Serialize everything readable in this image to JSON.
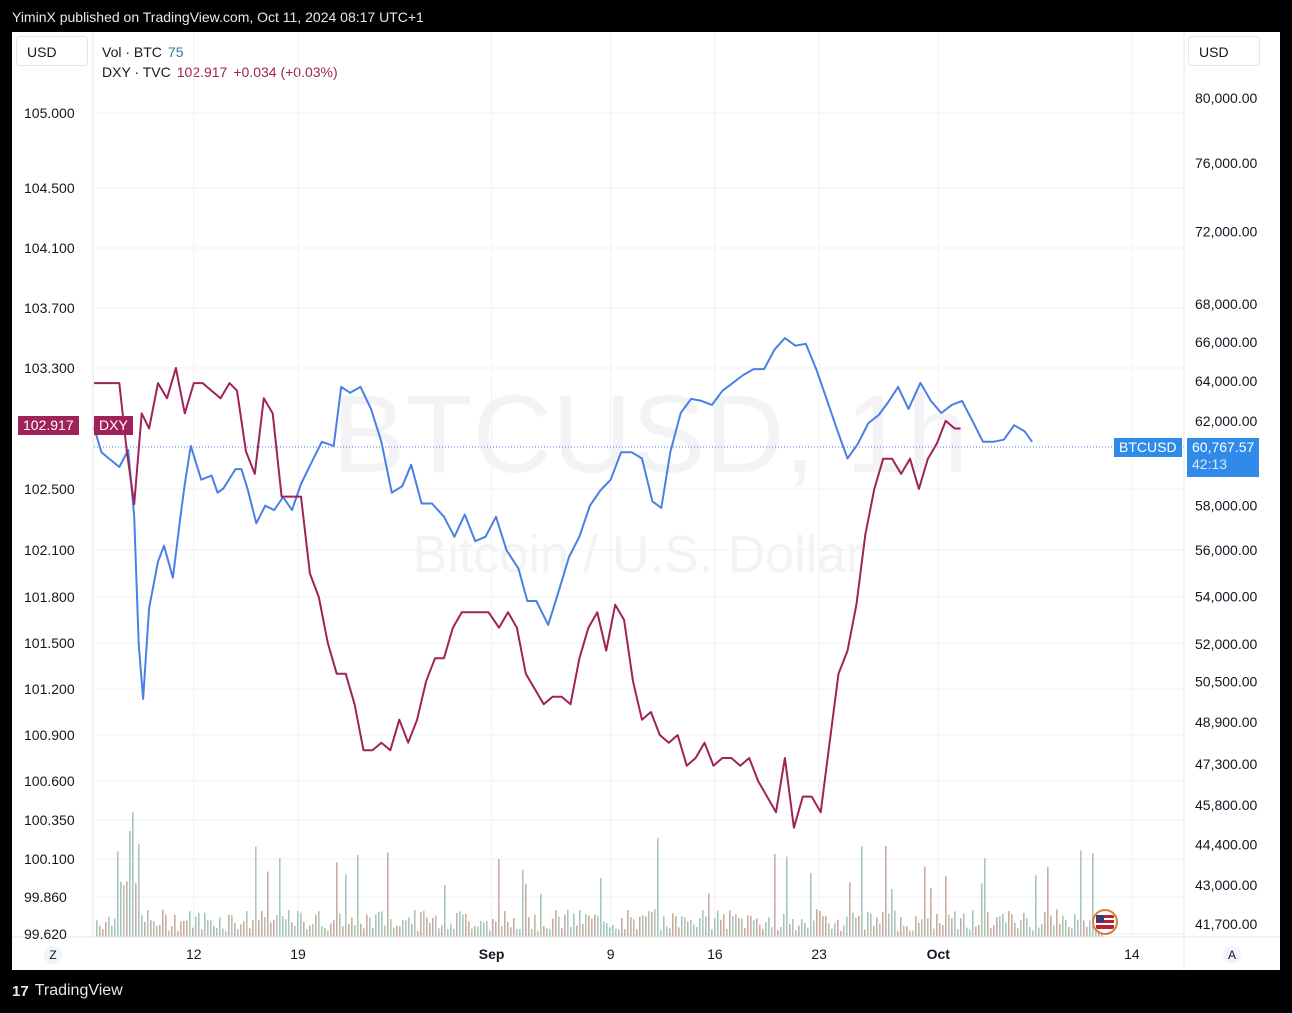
{
  "header": {
    "published": "YiminX published on TradingView.com, Oct 11, 2024 08:17 UTC+1"
  },
  "currency": {
    "left": "USD",
    "right": "USD"
  },
  "legend": {
    "vol_label": "Vol · BTC",
    "vol_value": "75",
    "dxy_label": "DXY · TVC",
    "dxy_value": "102.917",
    "dxy_change": "+0.034 (+0.03%)"
  },
  "watermark": {
    "symbol": "BTCUSD, 1h",
    "name": "Bitcoin / U.S. Dollar"
  },
  "tags": {
    "dxy_price": "102.917",
    "dxy_name": "DXY",
    "btc_name": "BTCUSD",
    "btc_price": "60,767.57",
    "btc_countdown": "42:13"
  },
  "corners": {
    "left": "Z",
    "right": "A"
  },
  "footer": {
    "brand": "TradingView"
  },
  "colors": {
    "btc": "#4a7fe6",
    "dxy": "#a0225a",
    "volume": "#c8ad9e",
    "grid": "#f0f1f4"
  },
  "chart_data": {
    "type": "line",
    "left_axis_ticks": [
      "105.000",
      "104.500",
      "104.100",
      "103.700",
      "103.300",
      "102.500",
      "102.100",
      "101.800",
      "101.500",
      "101.200",
      "100.900",
      "100.600",
      "100.350",
      "100.100",
      "99.860",
      "99.620"
    ],
    "right_axis_ticks": [
      "80,000.00",
      "76,000.00",
      "72,000.00",
      "68,000.00",
      "66,000.00",
      "64,000.00",
      "62,000.00",
      "58,000.00",
      "56,000.00",
      "54,000.00",
      "52,000.00",
      "50,500.00",
      "48,900.00",
      "47,300.00",
      "45,800.00",
      "44,400.00",
      "43,000.00",
      "41,700.00"
    ],
    "x_ticks": [
      {
        "label": "12",
        "day": 12
      },
      {
        "label": "19",
        "day": 19
      },
      {
        "label": "Sep",
        "day": 32,
        "bold": true
      },
      {
        "label": "9",
        "day": 40
      },
      {
        "label": "16",
        "day": 47
      },
      {
        "label": "23",
        "day": 54
      },
      {
        "label": "Oct",
        "day": 62,
        "bold": true
      },
      {
        "label": "14",
        "day": 75
      }
    ],
    "x_domain": [
      5.3,
      78.5
    ],
    "series": [
      {
        "name": "BTCUSD",
        "axis": "right",
        "points": [
          [
            5.3,
            61700
          ],
          [
            5.8,
            60500
          ],
          [
            6.3,
            60200
          ],
          [
            7.0,
            59800
          ],
          [
            7.6,
            60600
          ],
          [
            8.0,
            57500
          ],
          [
            8.3,
            52000
          ],
          [
            8.6,
            49800
          ],
          [
            9.0,
            53500
          ],
          [
            9.6,
            55500
          ],
          [
            10.0,
            56200
          ],
          [
            10.6,
            54800
          ],
          [
            11.1,
            57500
          ],
          [
            11.4,
            59000
          ],
          [
            11.8,
            60800
          ],
          [
            12.5,
            59200
          ],
          [
            13.2,
            59400
          ],
          [
            13.6,
            58600
          ],
          [
            14.0,
            58800
          ],
          [
            14.8,
            59700
          ],
          [
            15.2,
            59700
          ],
          [
            15.6,
            58800
          ],
          [
            16.2,
            57200
          ],
          [
            16.8,
            58000
          ],
          [
            17.4,
            57800
          ],
          [
            18.0,
            58400
          ],
          [
            18.6,
            57800
          ],
          [
            19.2,
            59000
          ],
          [
            19.9,
            60000
          ],
          [
            20.6,
            61000
          ],
          [
            21.4,
            60800
          ],
          [
            21.9,
            63700
          ],
          [
            22.5,
            63400
          ],
          [
            23.2,
            63700
          ],
          [
            23.9,
            62600
          ],
          [
            24.6,
            61000
          ],
          [
            25.3,
            58600
          ],
          [
            26.0,
            58900
          ],
          [
            26.6,
            59900
          ],
          [
            27.3,
            58100
          ],
          [
            28.0,
            58100
          ],
          [
            28.8,
            57500
          ],
          [
            29.5,
            56600
          ],
          [
            30.2,
            57600
          ],
          [
            30.9,
            56400
          ],
          [
            31.6,
            56600
          ],
          [
            32.3,
            57500
          ],
          [
            33.0,
            56000
          ],
          [
            33.8,
            55200
          ],
          [
            34.4,
            53800
          ],
          [
            35.0,
            53800
          ],
          [
            35.8,
            52800
          ],
          [
            36.5,
            54200
          ],
          [
            37.2,
            55700
          ],
          [
            37.9,
            56600
          ],
          [
            38.6,
            58000
          ],
          [
            39.3,
            58700
          ],
          [
            40.0,
            59200
          ],
          [
            40.7,
            60500
          ],
          [
            41.4,
            60500
          ],
          [
            42.1,
            60200
          ],
          [
            42.8,
            58200
          ],
          [
            43.4,
            57900
          ],
          [
            44.0,
            60500
          ],
          [
            44.7,
            62400
          ],
          [
            45.4,
            63100
          ],
          [
            46.1,
            63000
          ],
          [
            46.8,
            62800
          ],
          [
            47.5,
            63500
          ],
          [
            48.2,
            63900
          ],
          [
            48.9,
            64300
          ],
          [
            49.6,
            64600
          ],
          [
            50.3,
            64600
          ],
          [
            51.0,
            65600
          ],
          [
            51.7,
            66200
          ],
          [
            52.4,
            65800
          ],
          [
            53.1,
            65900
          ],
          [
            53.8,
            64600
          ],
          [
            54.5,
            63100
          ],
          [
            55.2,
            61600
          ],
          [
            55.9,
            60200
          ],
          [
            56.6,
            60900
          ],
          [
            57.3,
            61900
          ],
          [
            58.0,
            62300
          ],
          [
            58.6,
            62900
          ],
          [
            59.3,
            63700
          ],
          [
            60.0,
            62600
          ],
          [
            60.8,
            63900
          ],
          [
            61.5,
            63000
          ],
          [
            62.2,
            62400
          ],
          [
            62.9,
            62800
          ],
          [
            63.6,
            63000
          ],
          [
            64.3,
            62000
          ],
          [
            65.0,
            61000
          ],
          [
            65.7,
            61000
          ],
          [
            66.4,
            61100
          ],
          [
            67.1,
            61800
          ],
          [
            67.8,
            61500
          ],
          [
            68.3,
            61000
          ]
        ]
      },
      {
        "name": "DXY",
        "axis": "left",
        "points": [
          [
            5.3,
            103.2
          ],
          [
            5.8,
            103.2
          ],
          [
            6.4,
            103.2
          ],
          [
            7.0,
            103.2
          ],
          [
            7.5,
            102.75
          ],
          [
            8.0,
            102.4
          ],
          [
            8.5,
            103.0
          ],
          [
            9.0,
            102.9
          ],
          [
            9.6,
            103.2
          ],
          [
            10.2,
            103.1
          ],
          [
            10.8,
            103.3
          ],
          [
            11.4,
            103.0
          ],
          [
            12.0,
            103.2
          ],
          [
            12.6,
            103.2
          ],
          [
            13.2,
            103.15
          ],
          [
            13.8,
            103.1
          ],
          [
            14.4,
            103.2
          ],
          [
            14.9,
            103.15
          ],
          [
            15.5,
            102.75
          ],
          [
            16.1,
            102.6
          ],
          [
            16.7,
            103.1
          ],
          [
            17.3,
            103.0
          ],
          [
            17.9,
            102.45
          ],
          [
            18.6,
            102.45
          ],
          [
            19.2,
            102.45
          ],
          [
            19.8,
            101.95
          ],
          [
            20.4,
            101.8
          ],
          [
            21.0,
            101.5
          ],
          [
            21.6,
            101.3
          ],
          [
            22.2,
            101.3
          ],
          [
            22.8,
            101.1
          ],
          [
            23.4,
            100.8
          ],
          [
            24.0,
            100.8
          ],
          [
            24.6,
            100.85
          ],
          [
            25.2,
            100.8
          ],
          [
            25.8,
            101.0
          ],
          [
            26.4,
            100.85
          ],
          [
            27.0,
            101.0
          ],
          [
            27.6,
            101.25
          ],
          [
            28.2,
            101.4
          ],
          [
            28.8,
            101.4
          ],
          [
            29.4,
            101.6
          ],
          [
            30.0,
            101.7
          ],
          [
            30.6,
            101.7
          ],
          [
            31.2,
            101.7
          ],
          [
            31.8,
            101.7
          ],
          [
            32.5,
            101.6
          ],
          [
            33.1,
            101.7
          ],
          [
            33.7,
            101.6
          ],
          [
            34.3,
            101.3
          ],
          [
            34.9,
            101.2
          ],
          [
            35.5,
            101.1
          ],
          [
            36.1,
            101.15
          ],
          [
            36.7,
            101.15
          ],
          [
            37.3,
            101.1
          ],
          [
            37.9,
            101.4
          ],
          [
            38.5,
            101.6
          ],
          [
            39.1,
            101.7
          ],
          [
            39.7,
            101.45
          ],
          [
            40.3,
            101.75
          ],
          [
            40.9,
            101.65
          ],
          [
            41.5,
            101.25
          ],
          [
            42.1,
            101.0
          ],
          [
            42.7,
            101.05
          ],
          [
            43.3,
            100.9
          ],
          [
            43.9,
            100.85
          ],
          [
            44.5,
            100.9
          ],
          [
            45.1,
            100.7
          ],
          [
            45.7,
            100.75
          ],
          [
            46.3,
            100.85
          ],
          [
            46.9,
            100.7
          ],
          [
            47.5,
            100.75
          ],
          [
            48.1,
            100.75
          ],
          [
            48.7,
            100.7
          ],
          [
            49.3,
            100.75
          ],
          [
            49.9,
            100.6
          ],
          [
            50.5,
            100.5
          ],
          [
            51.1,
            100.4
          ],
          [
            51.7,
            100.75
          ],
          [
            52.3,
            100.3
          ],
          [
            52.9,
            100.5
          ],
          [
            53.5,
            100.5
          ],
          [
            54.1,
            100.4
          ],
          [
            54.7,
            100.85
          ],
          [
            55.3,
            101.3
          ],
          [
            55.9,
            101.45
          ],
          [
            56.5,
            101.75
          ],
          [
            57.1,
            102.2
          ],
          [
            57.7,
            102.5
          ],
          [
            58.3,
            102.7
          ],
          [
            58.9,
            102.7
          ],
          [
            59.5,
            102.6
          ],
          [
            60.1,
            102.7
          ],
          [
            60.7,
            102.5
          ],
          [
            61.3,
            102.7
          ],
          [
            61.9,
            102.8
          ],
          [
            62.5,
            102.95
          ],
          [
            63.1,
            102.9
          ],
          [
            63.5,
            102.9
          ]
        ]
      }
    ],
    "last_values": {
      "BTCUSD": 60767.57,
      "DXY": 102.917
    }
  }
}
